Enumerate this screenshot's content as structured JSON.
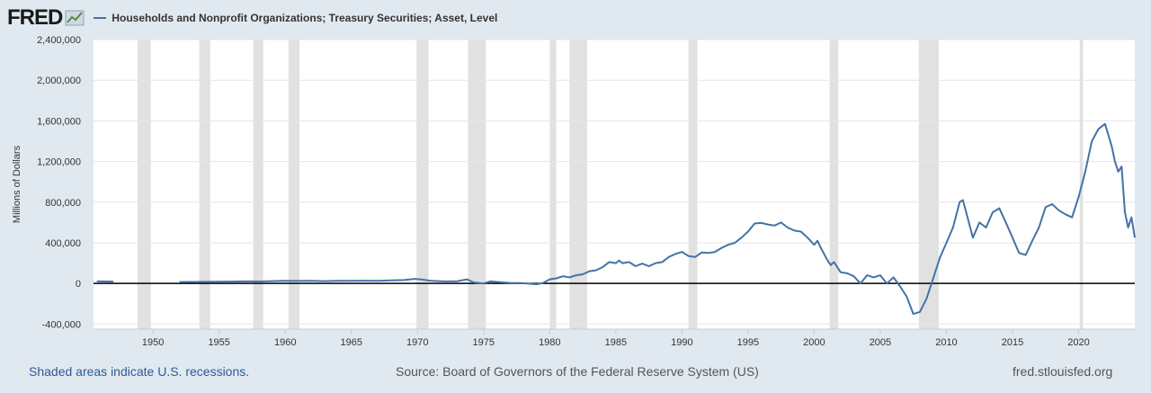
{
  "header": {
    "logo": "FRED",
    "logo_icon": "chart-line-icon"
  },
  "footer": {
    "recessions_note": "Shaded areas indicate U.S. recessions.",
    "source": "Source: Board of Governors of the Federal Reserve System (US)",
    "url": "fred.stlouisfed.org"
  },
  "colors": {
    "background": "#e1e9f0",
    "plot_background": "#ffffff",
    "series": "#4572a7",
    "recession": "#e1e1e1",
    "zero_line": "#000000"
  },
  "chart_data": {
    "type": "line",
    "title": "",
    "xlabel": "",
    "ylabel": "Millions of Dollars",
    "xlim": [
      1945.5,
      2024.25
    ],
    "ylim": [
      -450000,
      2400000
    ],
    "grid": true,
    "legend_position": "top-left",
    "x_ticks": [
      1950,
      1955,
      1960,
      1965,
      1970,
      1975,
      1980,
      1985,
      1990,
      1995,
      2000,
      2005,
      2010,
      2015,
      2020
    ],
    "x_tick_labels": [
      "1950",
      "1955",
      "1960",
      "1965",
      "1970",
      "1975",
      "1980",
      "1985",
      "1990",
      "1995",
      "2000",
      "2005",
      "2010",
      "2015",
      "2020"
    ],
    "y_ticks": [
      -400000,
      0,
      400000,
      800000,
      1200000,
      1600000,
      2000000,
      2400000
    ],
    "y_tick_labels": [
      "-400,000",
      "0",
      "400,000",
      "800,000",
      "1,200,000",
      "1,600,000",
      "2,000,000",
      "2,400,000"
    ],
    "recessions": [
      [
        1948.83,
        1949.83
      ],
      [
        1953.5,
        1954.33
      ],
      [
        1957.58,
        1958.33
      ],
      [
        1960.25,
        1961.08
      ],
      [
        1969.92,
        1970.83
      ],
      [
        1973.83,
        1975.17
      ],
      [
        1980.0,
        1980.5
      ],
      [
        1981.5,
        1982.83
      ],
      [
        1990.5,
        1991.17
      ],
      [
        2001.17,
        2001.83
      ],
      [
        2007.92,
        2009.42
      ],
      [
        2020.08,
        2020.33
      ]
    ],
    "series": [
      {
        "name": "Households and Nonprofit Organizations; Treasury Securities; Asset, Level",
        "segments": [
          [
            [
              1945.75,
              20000
            ],
            [
              1946.5,
              19000
            ],
            [
              1947.0,
              18000
            ]
          ],
          [
            [
              1952.0,
              14000
            ],
            [
              1953.0,
              15000
            ],
            [
              1954.0,
              16000
            ],
            [
              1955.0,
              17000
            ],
            [
              1956.0,
              18000
            ],
            [
              1957.0,
              20000
            ],
            [
              1958.0,
              19000
            ],
            [
              1959.0,
              23000
            ],
            [
              1960.0,
              26000
            ],
            [
              1961.0,
              24000
            ],
            [
              1962.0,
              25000
            ],
            [
              1963.0,
              23000
            ],
            [
              1964.0,
              26000
            ],
            [
              1965.0,
              25000
            ],
            [
              1966.0,
              27000
            ],
            [
              1967.0,
              26000
            ],
            [
              1968.0,
              30000
            ],
            [
              1969.0,
              33000
            ],
            [
              1969.75,
              45000
            ],
            [
              1970.25,
              40000
            ],
            [
              1971.0,
              25000
            ],
            [
              1972.0,
              20000
            ],
            [
              1973.0,
              22000
            ],
            [
              1973.75,
              40000
            ],
            [
              1974.25,
              10000
            ],
            [
              1975.0,
              0
            ],
            [
              1975.5,
              20000
            ],
            [
              1976.0,
              15000
            ],
            [
              1977.0,
              5000
            ],
            [
              1978.0,
              2000
            ],
            [
              1979.0,
              -8000
            ],
            [
              1979.5,
              5000
            ],
            [
              1980.0,
              40000
            ],
            [
              1980.5,
              50000
            ],
            [
              1981.0,
              70000
            ],
            [
              1981.5,
              60000
            ],
            [
              1982.0,
              80000
            ],
            [
              1982.5,
              90000
            ],
            [
              1983.0,
              120000
            ],
            [
              1983.5,
              130000
            ],
            [
              1984.0,
              160000
            ],
            [
              1984.5,
              210000
            ],
            [
              1985.0,
              200000
            ],
            [
              1985.25,
              225000
            ],
            [
              1985.5,
              200000
            ],
            [
              1986.0,
              210000
            ],
            [
              1986.5,
              170000
            ],
            [
              1987.0,
              195000
            ],
            [
              1987.5,
              170000
            ],
            [
              1988.0,
              200000
            ],
            [
              1988.5,
              210000
            ],
            [
              1989.0,
              260000
            ],
            [
              1989.5,
              290000
            ],
            [
              1990.0,
              310000
            ],
            [
              1990.5,
              270000
            ],
            [
              1991.0,
              260000
            ],
            [
              1991.5,
              305000
            ],
            [
              1992.0,
              300000
            ],
            [
              1992.5,
              310000
            ],
            [
              1993.0,
              350000
            ],
            [
              1993.5,
              380000
            ],
            [
              1994.0,
              400000
            ],
            [
              1994.5,
              450000
            ],
            [
              1995.0,
              510000
            ],
            [
              1995.5,
              590000
            ],
            [
              1996.0,
              595000
            ],
            [
              1996.5,
              580000
            ],
            [
              1997.0,
              570000
            ],
            [
              1997.5,
              600000
            ],
            [
              1998.0,
              550000
            ],
            [
              1998.5,
              520000
            ],
            [
              1999.0,
              510000
            ],
            [
              1999.5,
              450000
            ],
            [
              2000.0,
              380000
            ],
            [
              2000.25,
              420000
            ],
            [
              2000.5,
              350000
            ],
            [
              2001.0,
              230000
            ],
            [
              2001.25,
              180000
            ],
            [
              2001.5,
              210000
            ],
            [
              2002.0,
              110000
            ],
            [
              2002.5,
              100000
            ],
            [
              2003.0,
              70000
            ],
            [
              2003.5,
              0
            ],
            [
              2004.0,
              80000
            ],
            [
              2004.5,
              60000
            ],
            [
              2005.0,
              80000
            ],
            [
              2005.5,
              0
            ],
            [
              2006.0,
              60000
            ],
            [
              2006.5,
              -30000
            ],
            [
              2007.0,
              -130000
            ],
            [
              2007.5,
              -300000
            ],
            [
              2008.0,
              -280000
            ],
            [
              2008.5,
              -150000
            ],
            [
              2009.0,
              50000
            ],
            [
              2009.5,
              250000
            ],
            [
              2010.0,
              400000
            ],
            [
              2010.5,
              550000
            ],
            [
              2011.0,
              800000
            ],
            [
              2011.25,
              820000
            ],
            [
              2011.5,
              700000
            ],
            [
              2012.0,
              450000
            ],
            [
              2012.5,
              600000
            ],
            [
              2013.0,
              550000
            ],
            [
              2013.5,
              700000
            ],
            [
              2014.0,
              740000
            ],
            [
              2014.5,
              600000
            ],
            [
              2015.0,
              450000
            ],
            [
              2015.5,
              300000
            ],
            [
              2016.0,
              280000
            ],
            [
              2016.5,
              420000
            ],
            [
              2017.0,
              550000
            ],
            [
              2017.5,
              750000
            ],
            [
              2018.0,
              780000
            ],
            [
              2018.5,
              720000
            ],
            [
              2019.0,
              680000
            ],
            [
              2019.5,
              650000
            ],
            [
              2020.0,
              850000
            ],
            [
              2020.5,
              1100000
            ],
            [
              2021.0,
              1400000
            ],
            [
              2021.5,
              1520000
            ],
            [
              2022.0,
              1570000
            ],
            [
              2022.5,
              1350000
            ],
            [
              2022.75,
              1200000
            ],
            [
              2023.0,
              1100000
            ],
            [
              2023.25,
              1150000
            ],
            [
              2023.5,
              700000
            ],
            [
              2023.75,
              550000
            ],
            [
              2024.0,
              650000
            ],
            [
              2024.25,
              450000
            ]
          ]
        ]
      }
    ]
  }
}
